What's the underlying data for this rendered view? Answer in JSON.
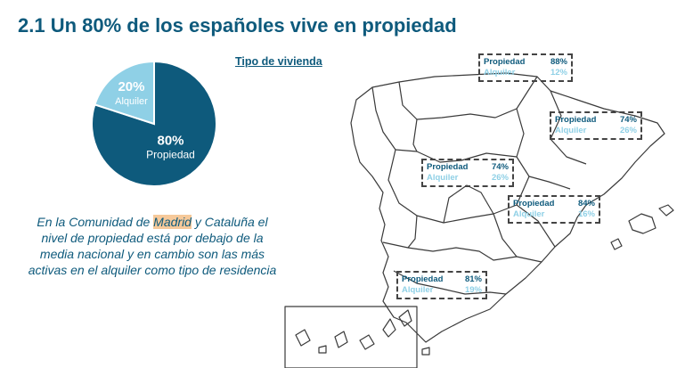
{
  "title": "2.1 Un 80% de los españoles vive en propiedad",
  "subtitle": "Tipo de vivienda",
  "colors": {
    "propiedad": "#0e5a7c",
    "alquiler": "#8fd0e6",
    "title": "#0e5a7c"
  },
  "chart_data": {
    "type": "pie",
    "slices": [
      {
        "label": "Propiedad",
        "value": 80,
        "display": "80%"
      },
      {
        "label": "Alquiler",
        "value": 20,
        "display": "20%"
      }
    ]
  },
  "note": {
    "before": "En la Comunidad de ",
    "highlight": "Madrid",
    "after": " y Cataluña el nivel de propiedad está por debajo de la media nacional y en cambio son las más activas en el alquiler como tipo de residencia"
  },
  "regions": [
    {
      "own_label": "Propiedad",
      "own_value": "88%",
      "rent_label": "Alquiler",
      "rent_value": "12%"
    },
    {
      "own_label": "Propiedad",
      "own_value": "74%",
      "rent_label": "Alquiler",
      "rent_value": "26%"
    },
    {
      "own_label": "Propiedad",
      "own_value": "74%",
      "rent_label": "Alquiler",
      "rent_value": "26%"
    },
    {
      "own_label": "Propiedad",
      "own_value": "84%",
      "rent_label": "Alquiler",
      "rent_value": "16%"
    },
    {
      "own_label": "Propiedad",
      "own_value": "81%",
      "rent_label": "Alquiler",
      "rent_value": "19%"
    }
  ]
}
